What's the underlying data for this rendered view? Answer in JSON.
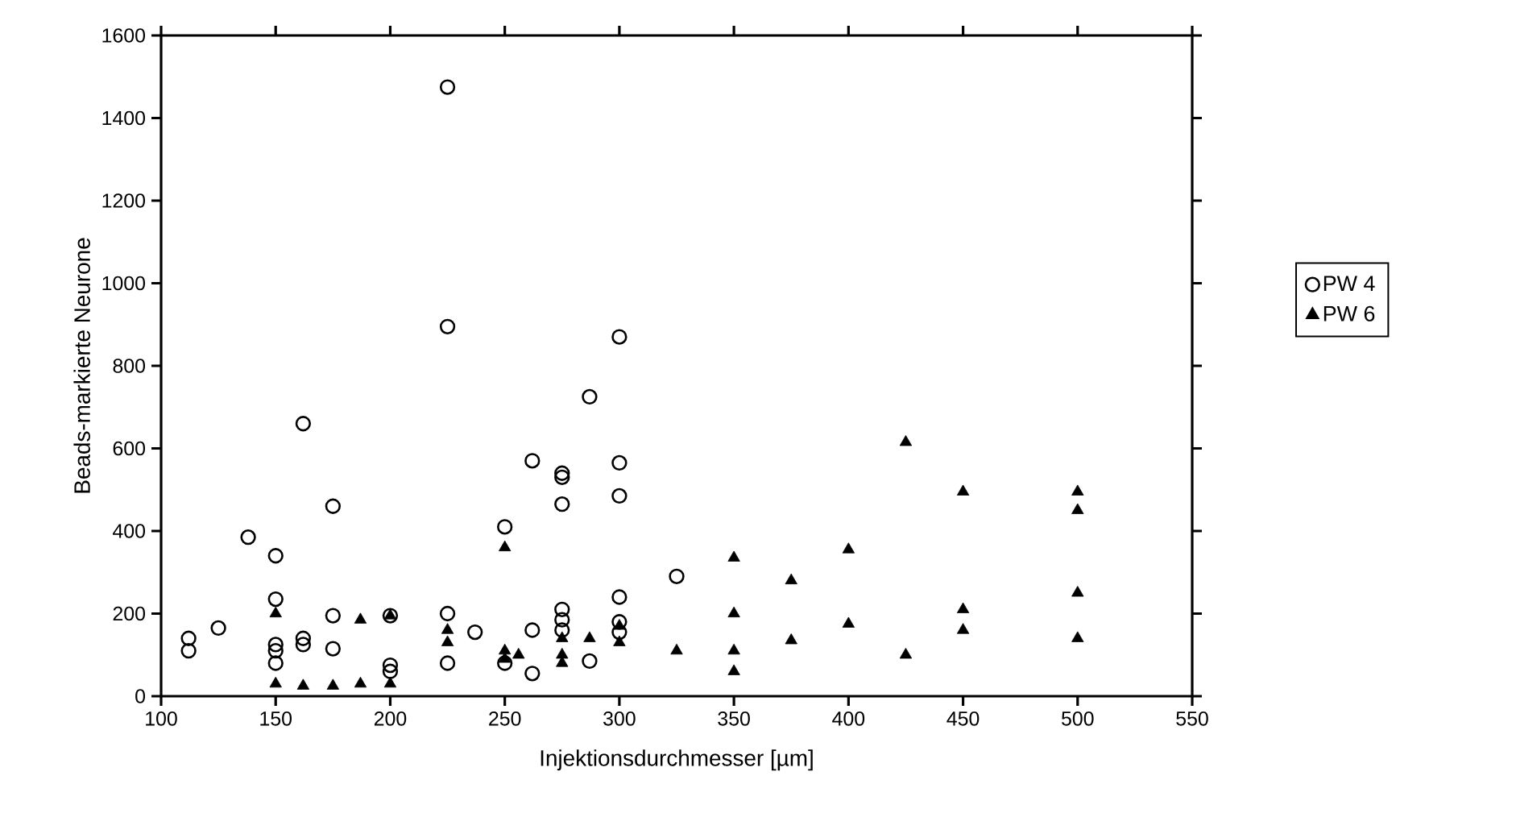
{
  "chart_data": {
    "type": "scatter",
    "xlabel": "Injektionsdurchmesser [µm]",
    "ylabel": "Beads-markierte Neurone",
    "xlim": [
      100,
      550
    ],
    "ylim": [
      0,
      1600
    ],
    "xticks": [
      100,
      150,
      200,
      250,
      300,
      350,
      400,
      450,
      500,
      550
    ],
    "yticks": [
      0,
      200,
      400,
      600,
      800,
      1000,
      1200,
      1400,
      1600
    ],
    "grid": false,
    "legend": "right",
    "series": [
      {
        "name": "PW 4",
        "color": "#000000",
        "marker": "circle",
        "x": [
          112,
          112,
          125,
          138,
          150,
          150,
          150,
          150,
          150,
          162,
          162,
          162,
          175,
          175,
          175,
          200,
          200,
          200,
          225,
          225,
          225,
          225,
          237,
          250,
          250,
          262,
          262,
          262,
          275,
          275,
          275,
          275,
          275,
          275,
          287,
          287,
          300,
          300,
          300,
          300,
          300,
          300,
          325
        ],
        "values": [
          140,
          110,
          165,
          385,
          340,
          235,
          125,
          110,
          80,
          660,
          125,
          140,
          460,
          195,
          115,
          195,
          75,
          60,
          1475,
          895,
          200,
          80,
          155,
          410,
          80,
          570,
          160,
          55,
          540,
          530,
          465,
          210,
          185,
          160,
          725,
          85,
          870,
          565,
          485,
          240,
          180,
          155,
          290
        ]
      },
      {
        "name": "PW 6",
        "color": "#000000",
        "marker": "triangle",
        "x": [
          150,
          150,
          162,
          175,
          187,
          187,
          200,
          200,
          225,
          225,
          250,
          250,
          250,
          256,
          275,
          275,
          275,
          287,
          300,
          300,
          325,
          350,
          350,
          350,
          350,
          375,
          375,
          400,
          400,
          425,
          425,
          450,
          450,
          450,
          500,
          500,
          500,
          500
        ],
        "values": [
          200,
          30,
          25,
          25,
          185,
          30,
          195,
          30,
          160,
          130,
          360,
          110,
          90,
          100,
          140,
          100,
          80,
          140,
          170,
          130,
          110,
          335,
          200,
          110,
          60,
          280,
          135,
          355,
          175,
          615,
          100,
          495,
          210,
          160,
          495,
          450,
          250,
          140
        ]
      }
    ]
  }
}
